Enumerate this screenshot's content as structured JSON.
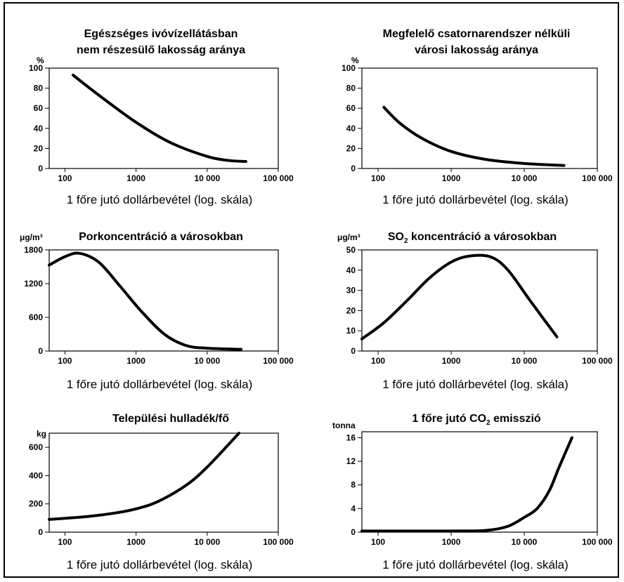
{
  "chart_data": [
    {
      "type": "line",
      "title": [
        "Egészséges ivóvízellátásban",
        "nem részesülő lakosság aránya"
      ],
      "ylabel": "%",
      "xlabel": "1 főre jutó dollárbevétel (log. skála)",
      "xscale": "log",
      "xlim": [
        60,
        100000
      ],
      "ylim": [
        0,
        100
      ],
      "xticks": [
        {
          "v": 100,
          "label": "100"
        },
        {
          "v": 1000,
          "label": "1000"
        },
        {
          "v": 10000,
          "label": "10 000"
        },
        {
          "v": 100000,
          "label": "100 000"
        }
      ],
      "yticks": [
        {
          "v": 0,
          "label": "0"
        },
        {
          "v": 20,
          "label": "20"
        },
        {
          "v": 40,
          "label": "40"
        },
        {
          "v": 60,
          "label": "60"
        },
        {
          "v": 80,
          "label": "80"
        },
        {
          "v": 100,
          "label": "100"
        }
      ],
      "series": [
        {
          "x": [
            130,
            300,
            1000,
            3000,
            10000,
            20000,
            35000
          ],
          "y": [
            93,
            73,
            46,
            26,
            12,
            8,
            7
          ]
        }
      ]
    },
    {
      "type": "line",
      "title": [
        "Megfelelő csatornarendszer nélküli",
        "városi lakosság aránya"
      ],
      "ylabel": "%",
      "xlabel": "1 főre jutó dollárbevétel (log. skála)",
      "xscale": "log",
      "xlim": [
        60,
        100000
      ],
      "ylim": [
        0,
        100
      ],
      "xticks": [
        {
          "v": 100,
          "label": "100"
        },
        {
          "v": 1000,
          "label": "1000"
        },
        {
          "v": 10000,
          "label": "10 000"
        },
        {
          "v": 100000,
          "label": "100 000"
        }
      ],
      "yticks": [
        {
          "v": 0,
          "label": "0"
        },
        {
          "v": 20,
          "label": "20"
        },
        {
          "v": 40,
          "label": "40"
        },
        {
          "v": 60,
          "label": "60"
        },
        {
          "v": 80,
          "label": "80"
        },
        {
          "v": 100,
          "label": "100"
        }
      ],
      "series": [
        {
          "x": [
            120,
            200,
            400,
            1000,
            3000,
            10000,
            35000
          ],
          "y": [
            61,
            45,
            30,
            17,
            9,
            5,
            3
          ]
        }
      ]
    },
    {
      "type": "line",
      "title": [
        "Porkoncentráció a városokban"
      ],
      "ylabel": "μg/m³",
      "xlabel": "1 főre jutó dollárbevétel (log. skála)",
      "xscale": "log",
      "xlim": [
        60,
        100000
      ],
      "ylim": [
        0,
        1800
      ],
      "xticks": [
        {
          "v": 100,
          "label": "100"
        },
        {
          "v": 1000,
          "label": "1000"
        },
        {
          "v": 10000,
          "label": "10 000"
        },
        {
          "v": 100000,
          "label": "100 000"
        }
      ],
      "yticks": [
        {
          "v": 0,
          "label": "0"
        },
        {
          "v": 600,
          "label": "600"
        },
        {
          "v": 1200,
          "label": "1200"
        },
        {
          "v": 1800,
          "label": "1800"
        }
      ],
      "series": [
        {
          "x": [
            60,
            100,
            160,
            300,
            600,
            1200,
            2500,
            5000,
            10000,
            30000
          ],
          "y": [
            1530,
            1680,
            1740,
            1580,
            1150,
            700,
            300,
            100,
            50,
            30
          ]
        }
      ]
    },
    {
      "type": "line",
      "title": [
        "SO",
        "2",
        " koncentráció a városokban"
      ],
      "ylabel": "μg/m³",
      "xlabel": "1 főre jutó dollárbevétel (log. skála)",
      "xscale": "log",
      "xlim": [
        60,
        100000
      ],
      "ylim": [
        0,
        50
      ],
      "xticks": [
        {
          "v": 100,
          "label": "100"
        },
        {
          "v": 1000,
          "label": "1000"
        },
        {
          "v": 10000,
          "label": "10 000"
        },
        {
          "v": 100000,
          "label": "100 000"
        }
      ],
      "yticks": [
        {
          "v": 0,
          "label": "0"
        },
        {
          "v": 10,
          "label": "10"
        },
        {
          "v": 20,
          "label": "20"
        },
        {
          "v": 30,
          "label": "30"
        },
        {
          "v": 40,
          "label": "40"
        },
        {
          "v": 50,
          "label": "50"
        }
      ],
      "series": [
        {
          "x": [
            60,
            120,
            250,
            500,
            1000,
            1800,
            3500,
            6000,
            12000,
            28000
          ],
          "y": [
            6,
            14,
            25,
            36,
            44,
            47,
            46.5,
            40,
            25,
            7
          ]
        }
      ]
    },
    {
      "type": "line",
      "title": [
        "Települési hulladék/fő"
      ],
      "ylabel": "kg",
      "xlabel": "1 főre jutó dollárbevétel (log. skála)",
      "xscale": "log",
      "xlim": [
        60,
        100000
      ],
      "ylim": [
        0,
        700
      ],
      "xticks": [
        {
          "v": 100,
          "label": "100"
        },
        {
          "v": 1000,
          "label": "1000"
        },
        {
          "v": 10000,
          "label": "10 000"
        },
        {
          "v": 100000,
          "label": "100 000"
        }
      ],
      "yticks": [
        {
          "v": 0,
          "label": "0"
        },
        {
          "v": 200,
          "label": "200"
        },
        {
          "v": 400,
          "label": "400"
        },
        {
          "v": 600,
          "label": "600"
        }
      ],
      "series": [
        {
          "x": [
            60,
            200,
            500,
            1000,
            2000,
            5000,
            10000,
            28000
          ],
          "y": [
            90,
            110,
            135,
            165,
            215,
            330,
            460,
            700
          ]
        }
      ]
    },
    {
      "type": "line",
      "title": [
        "1 főre jutó CO",
        "2",
        " emisszió"
      ],
      "ylabel": "tonna",
      "xlabel": "1 főre jutó dollárbevétel (log. skála)",
      "xscale": "log",
      "xlim": [
        60,
        100000
      ],
      "ylim": [
        0,
        17
      ],
      "xticks": [
        {
          "v": 100,
          "label": "100"
        },
        {
          "v": 1000,
          "label": "1000"
        },
        {
          "v": 10000,
          "label": "10 000"
        },
        {
          "v": 100000,
          "label": "100 000"
        }
      ],
      "yticks": [
        {
          "v": 0,
          "label": "0"
        },
        {
          "v": 4,
          "label": "4"
        },
        {
          "v": 8,
          "label": "8"
        },
        {
          "v": 12,
          "label": "12"
        },
        {
          "v": 16,
          "label": "16"
        }
      ],
      "series": [
        {
          "x": [
            60,
            1000,
            3000,
            6000,
            10000,
            15000,
            22000,
            30000,
            45000
          ],
          "y": [
            0.2,
            0.2,
            0.3,
            1,
            2.5,
            4,
            7,
            11,
            16
          ]
        }
      ]
    }
  ]
}
